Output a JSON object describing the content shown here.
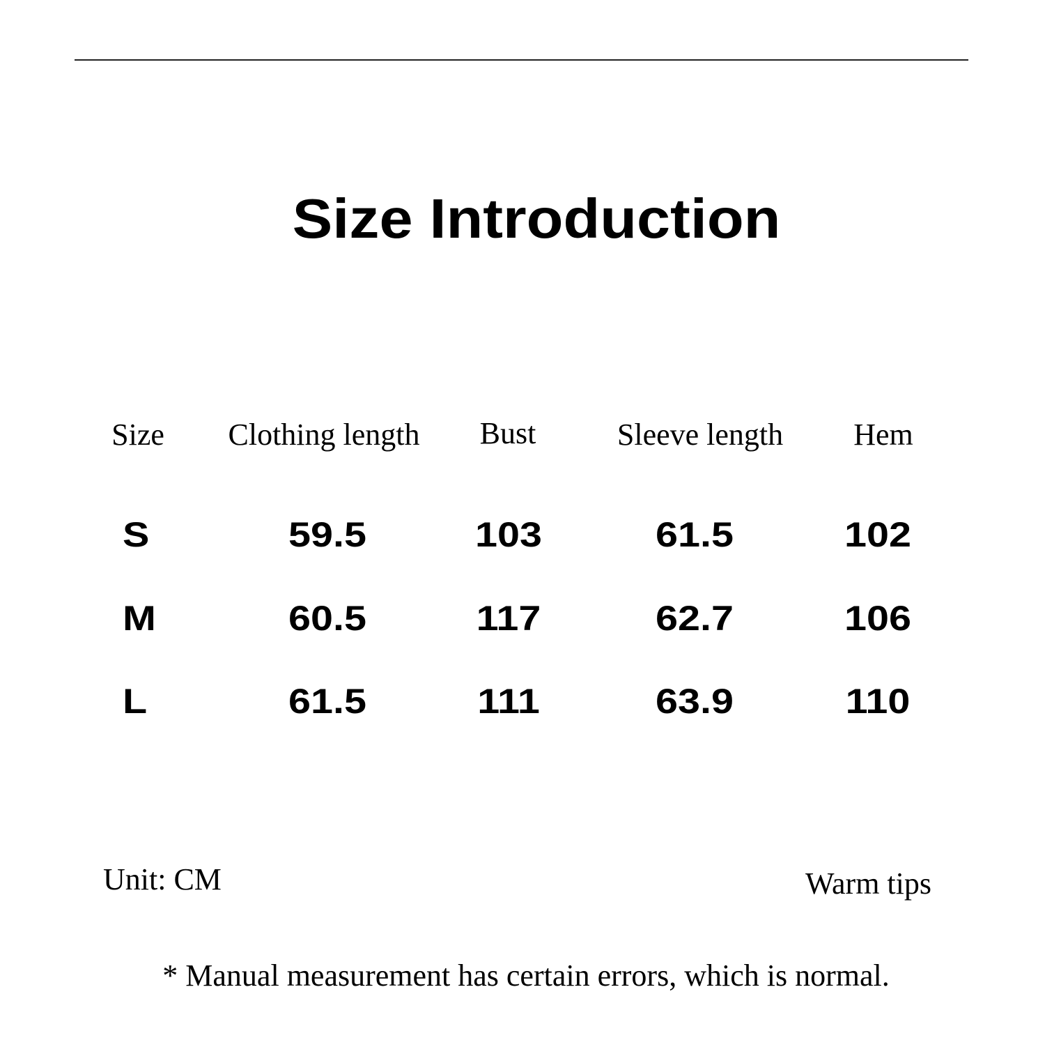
{
  "title": "Size Introduction",
  "table": {
    "headers": [
      "Size",
      "Clothing length",
      "Bust",
      "Sleeve length",
      "Hem"
    ],
    "rows": [
      [
        "S",
        "59.5",
        "103",
        "61.5",
        "102"
      ],
      [
        "M",
        "60.5",
        "117",
        "62.7",
        "106"
      ],
      [
        "L",
        "61.5",
        "111",
        "63.9",
        "110"
      ]
    ]
  },
  "unit_label": "Unit: CM",
  "warm_tips_label": "Warm tips",
  "footnote": "* Manual measurement has certain errors, which is normal."
}
